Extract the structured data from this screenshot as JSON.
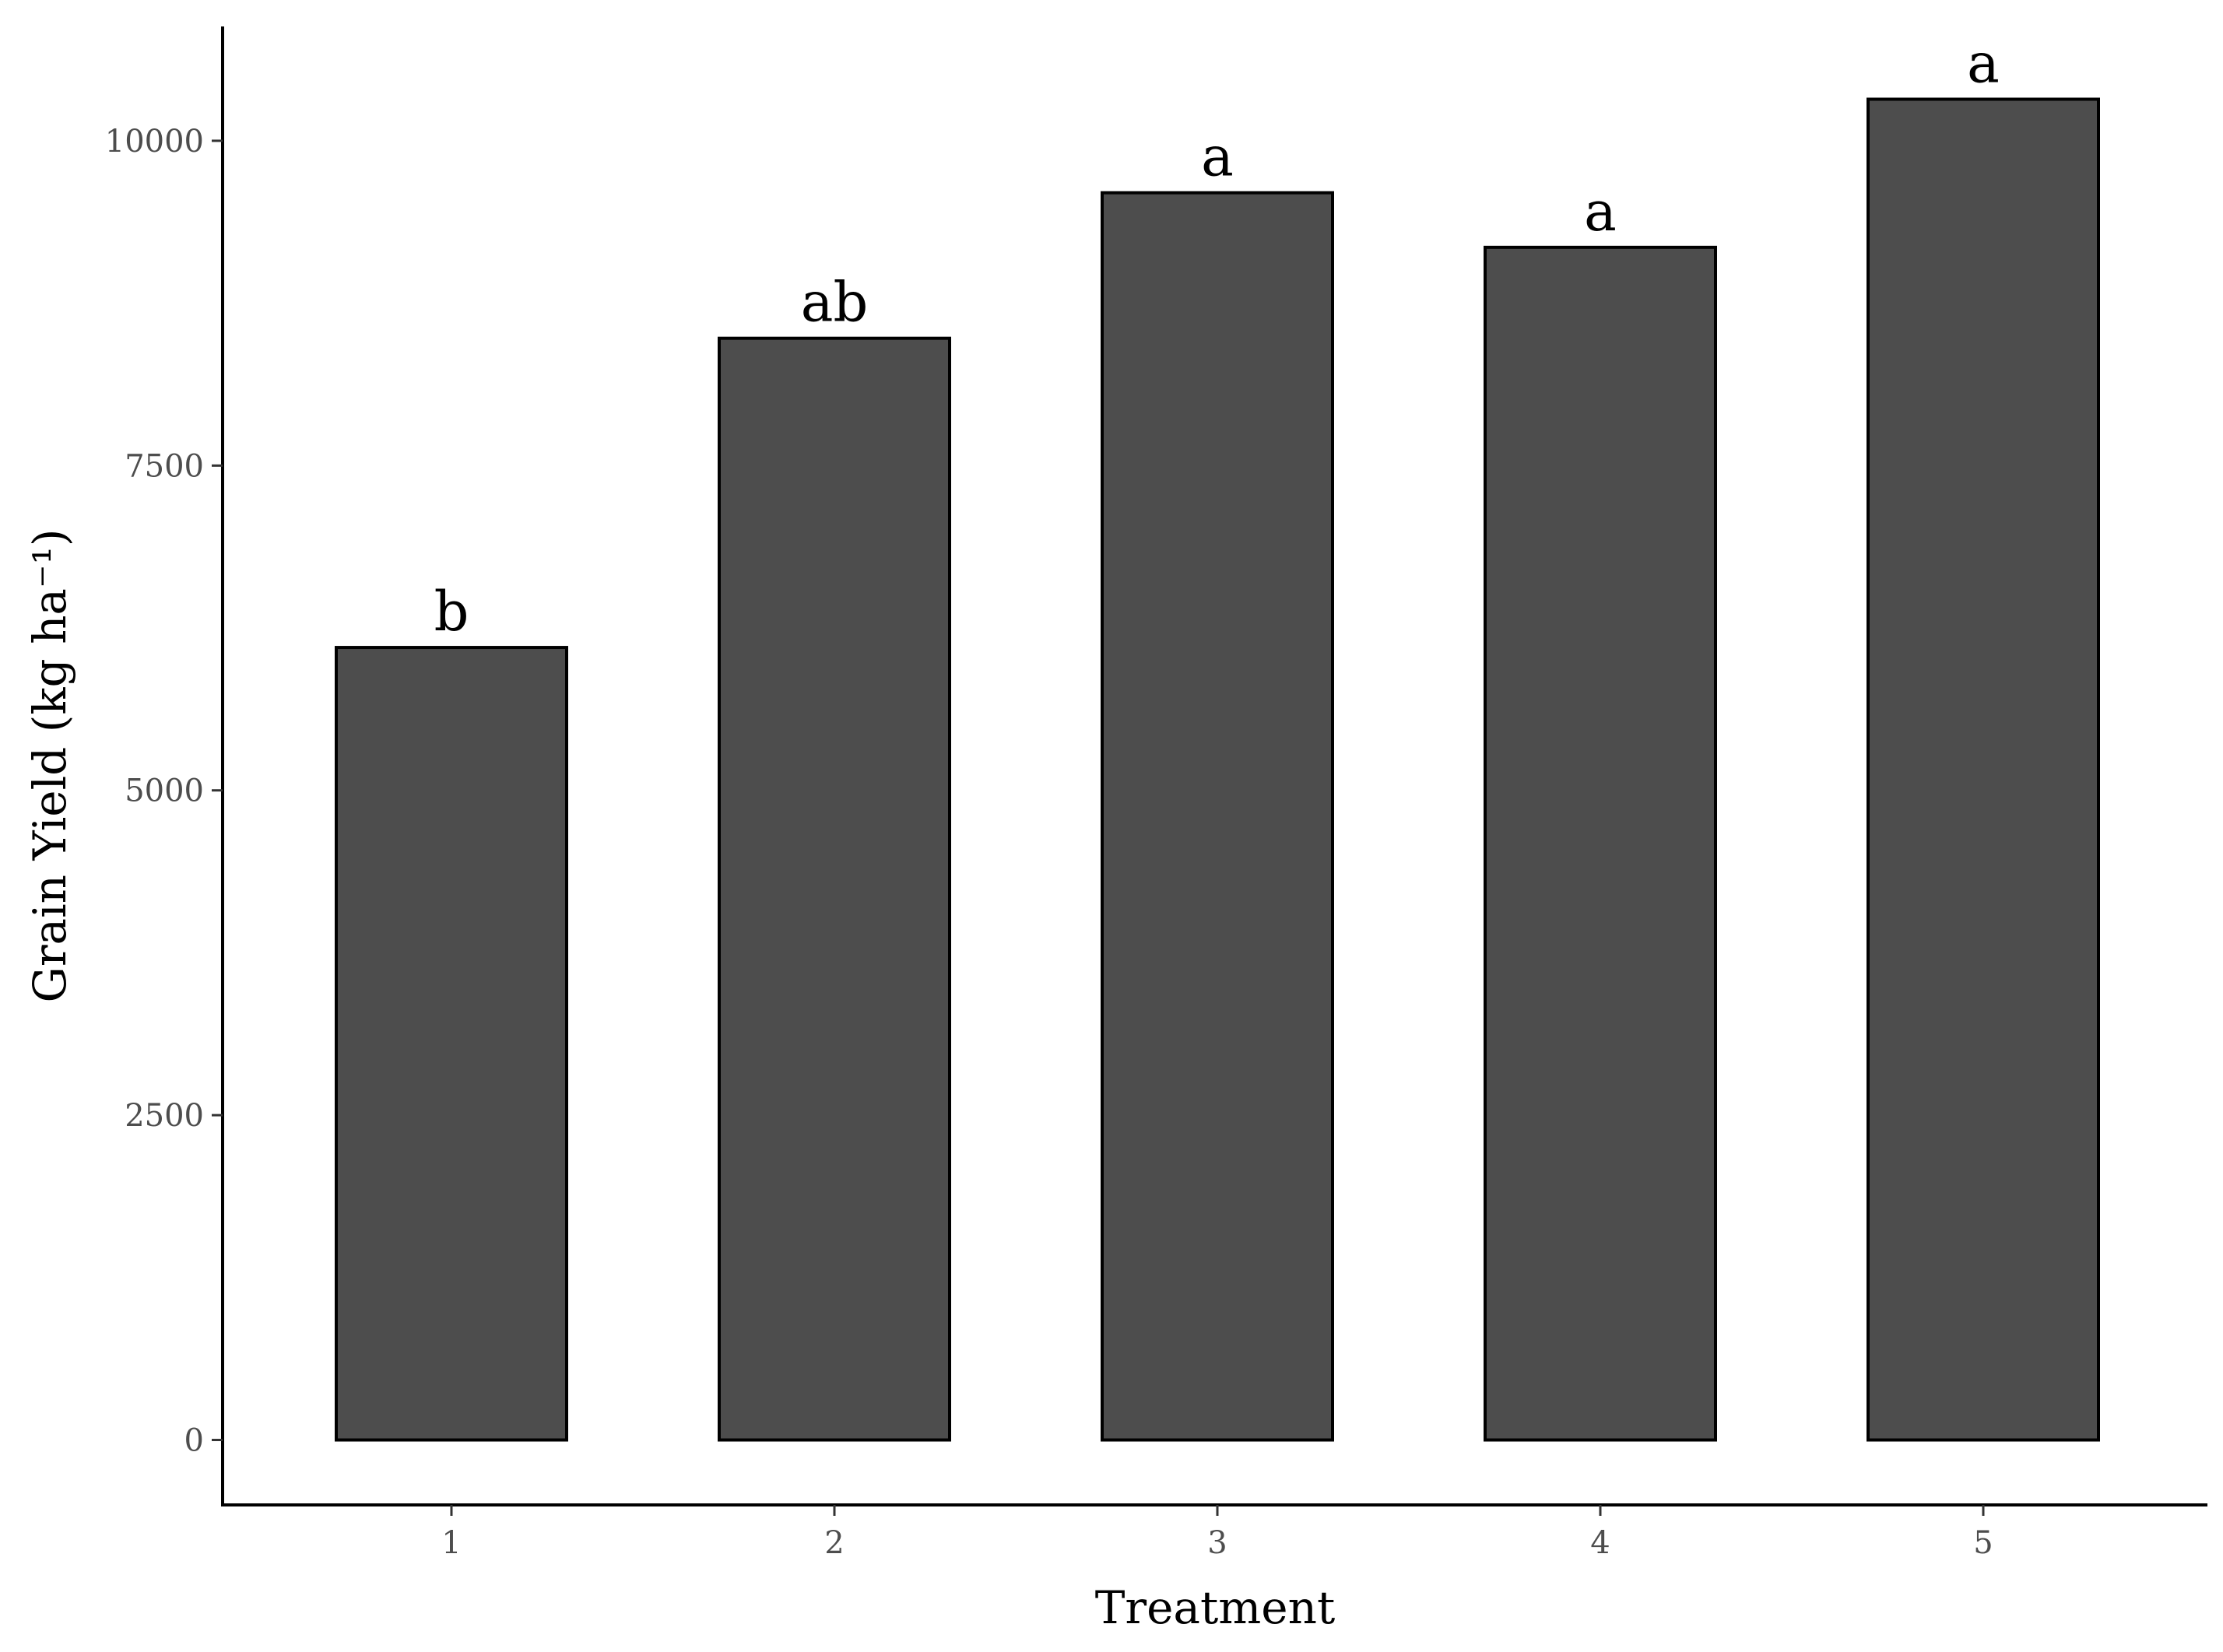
{
  "chart_data": {
    "type": "bar",
    "title": "",
    "xlabel": "Treatment",
    "ylabel": "Grain Yield (kg ha⁻¹)",
    "categories": [
      "1",
      "2",
      "3",
      "4",
      "5"
    ],
    "values": [
      6100,
      8480,
      9600,
      9180,
      10320
    ],
    "significance_labels": [
      "b",
      "ab",
      "a",
      "a",
      "a"
    ],
    "y_ticks": [
      0,
      2500,
      5000,
      7500,
      10000
    ],
    "y_tick_labels": [
      "0",
      "2500",
      "5000",
      "7500",
      "10000"
    ],
    "ylim": [
      -500,
      10880
    ],
    "grid": false,
    "legend": "none",
    "bar_color": "#4d4d4d",
    "bar_outline_color": "#000000",
    "axis_color": "#000000",
    "tick_label_color": "#4d4d4d"
  }
}
